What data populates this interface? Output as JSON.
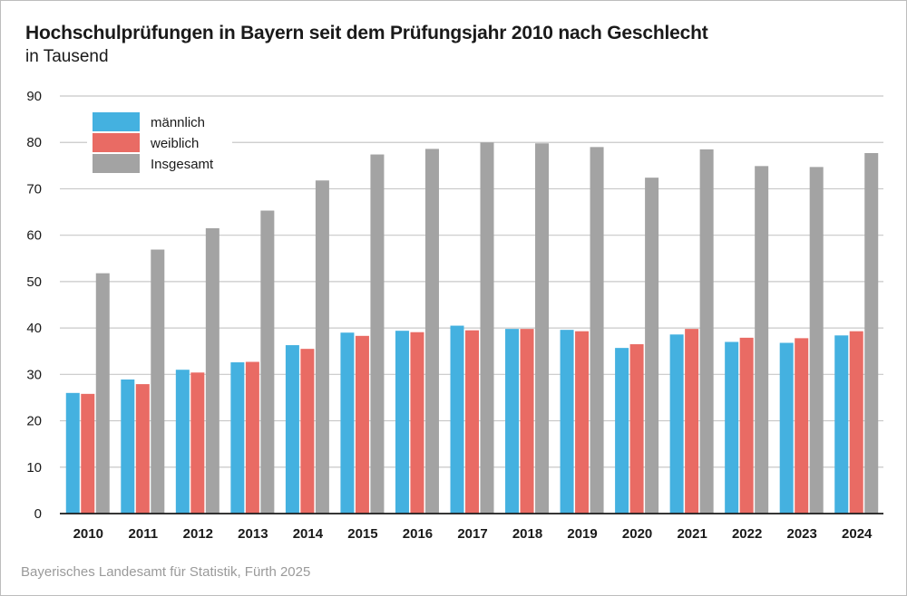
{
  "title": "Hochschulprüfungen in Bayern seit dem Prüfungsjahr 2010 nach Geschlecht",
  "subtitle": "in Tausend",
  "source": "Bayerisches Landesamt für Statistik, Fürth 2025",
  "colors": {
    "maennlich": "#44b1e0",
    "weiblich": "#e96b64",
    "insgesamt": "#a3a3a3",
    "grid": "#c8c8c8",
    "axis": "#1a1a1a"
  },
  "chart_data": {
    "type": "bar",
    "categories": [
      "2010",
      "2011",
      "2012",
      "2013",
      "2014",
      "2015",
      "2016",
      "2017",
      "2018",
      "2019",
      "2020",
      "2021",
      "2022",
      "2023",
      "2024"
    ],
    "series": [
      {
        "name": "männlich",
        "values": [
          26.0,
          28.9,
          31.0,
          32.6,
          36.3,
          39.0,
          39.4,
          40.5,
          39.8,
          39.6,
          35.7,
          38.6,
          37.0,
          36.8,
          38.4
        ]
      },
      {
        "name": "weiblich",
        "values": [
          25.8,
          27.9,
          30.4,
          32.7,
          35.5,
          38.3,
          39.1,
          39.5,
          39.8,
          39.3,
          36.5,
          39.8,
          37.9,
          37.8,
          39.3
        ]
      },
      {
        "name": "Insgesamt",
        "values": [
          51.8,
          56.9,
          61.5,
          65.3,
          71.8,
          77.4,
          78.6,
          80.0,
          79.8,
          79.0,
          72.4,
          78.5,
          74.9,
          74.7,
          77.7
        ]
      }
    ],
    "ylim": [
      0,
      90
    ],
    "yticks": [
      0,
      10,
      20,
      30,
      40,
      50,
      60,
      70,
      80,
      90
    ],
    "grid": true,
    "legend_position": "top-left"
  }
}
